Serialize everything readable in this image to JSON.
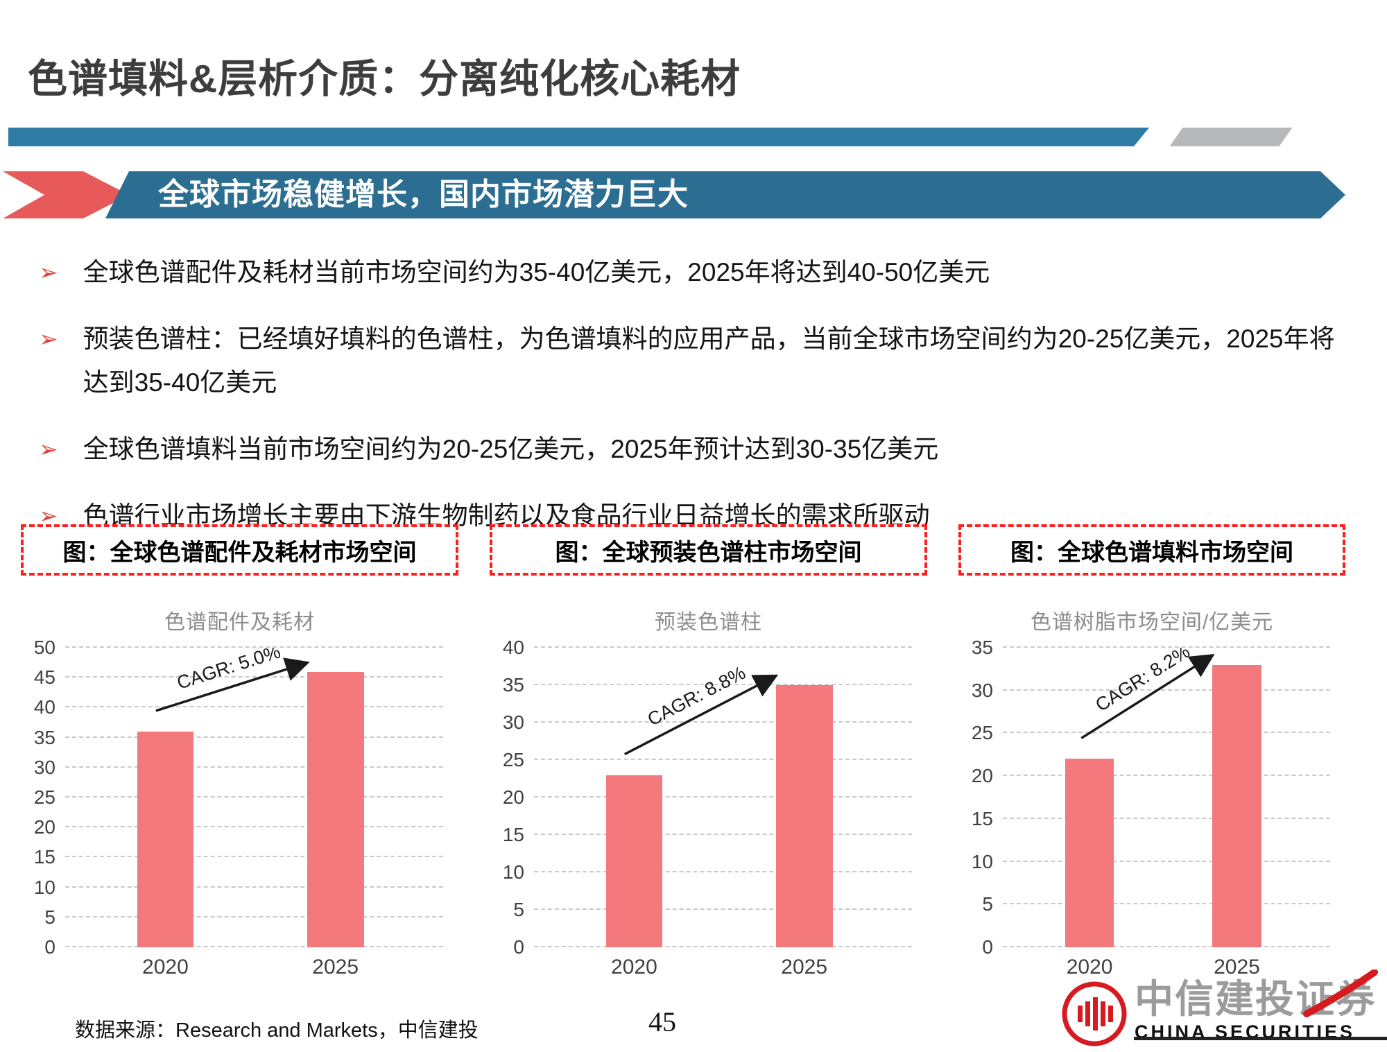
{
  "header": {
    "title": "色谱填料&层析介质：分离纯化核心耗材",
    "banner": "全球市场稳健增长，国内市场潜力巨大"
  },
  "bullet_glyph": "➢",
  "bullets": [
    "全球色谱配件及耗材当前市场空间约为35-40亿美元，2025年将达到40-50亿美元",
    "预装色谱柱：已经填好填料的色谱柱，为色谱填料的应用产品，当前全球市场空间约为20-25亿美元，2025年将达到35-40亿美元",
    "全球色谱填料当前市场空间约为20-25亿美元，2025年预计达到30-35亿美元",
    "色谱行业市场增长主要由下游生物制药以及食品行业日益增长的需求所驱动"
  ],
  "figure_labels": [
    "图：全球色谱配件及耗材市场空间",
    "图：全球预装色谱柱市场空间",
    "图：全球色谱填料市场空间"
  ],
  "chart_data": [
    {
      "type": "bar",
      "title": "色谱配件及耗材",
      "categories": [
        "2020",
        "2025"
      ],
      "values": [
        36,
        46
      ],
      "ylim": [
        0,
        50
      ],
      "yticks": [
        0,
        5,
        10,
        15,
        20,
        25,
        30,
        35,
        40,
        45,
        50
      ],
      "annotation": "CAGR: 5.0%",
      "grid": "dashed"
    },
    {
      "type": "bar",
      "title": "预装色谱柱",
      "categories": [
        "2020",
        "2025"
      ],
      "values": [
        23,
        35
      ],
      "ylim": [
        0,
        40
      ],
      "yticks": [
        0,
        5,
        10,
        15,
        20,
        25,
        30,
        35,
        40
      ],
      "annotation": "CAGR: 8.8%",
      "grid": "dashed"
    },
    {
      "type": "bar",
      "title": "色谱树脂市场空间/亿美元",
      "categories": [
        "2020",
        "2025"
      ],
      "values": [
        22,
        33
      ],
      "ylim": [
        0,
        35
      ],
      "yticks": [
        0,
        5,
        10,
        15,
        20,
        25,
        30,
        35
      ],
      "annotation": "CAGR: 8.2%",
      "grid": "dashed"
    }
  ],
  "footer": {
    "source": "数据来源：Research and Markets，中信建投",
    "page_number": "45"
  },
  "logo": {
    "name_cn": "中信建投证券",
    "name_en": "CHINA SECURITIES"
  },
  "colors": {
    "accent_teal": "#2E7BA3",
    "banner_blue": "#2B6E92",
    "banner_red": "#E85A5A",
    "bar_pink": "#F4797D",
    "box_border_red": "#FF1F1F",
    "bullet_red": "#E0433D",
    "logo_red": "#D71920"
  }
}
